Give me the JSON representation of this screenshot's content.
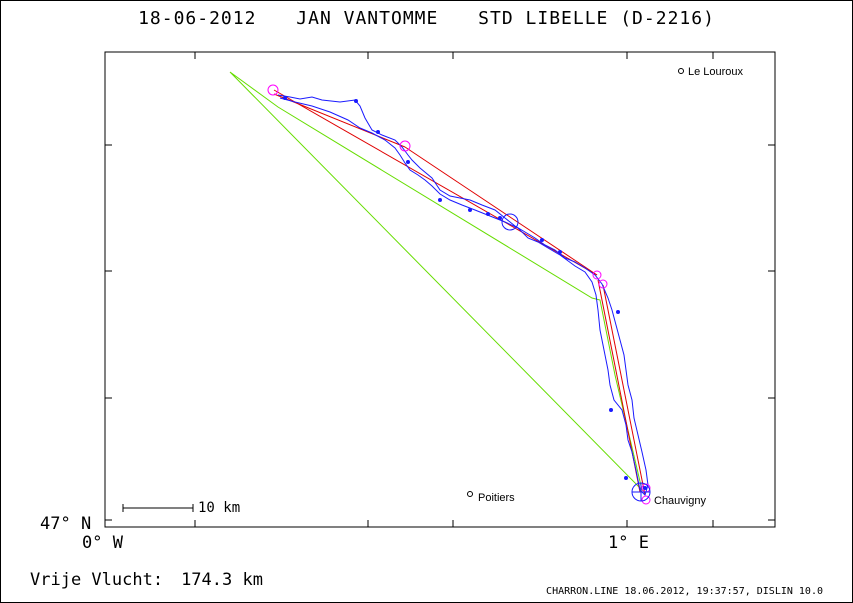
{
  "header": {
    "date": "18-06-2012",
    "pilot": "JAN VANTOMME",
    "glider": "STD LIBELLE (D-2216)"
  },
  "axes": {
    "lat_label": "47° N",
    "lon_left_label": "0° W",
    "lon_right_label": "1° E"
  },
  "places": {
    "le_louroux": "Le Louroux",
    "poitiers": "Poitiers",
    "chauvigny": "Chauvigny"
  },
  "scale": {
    "label": "10 km"
  },
  "distance": {
    "label": "Vrije Vlucht:",
    "value": "174.3 km"
  },
  "footer": {
    "text": "CHARRON.LINE 18.06.2012, 19:37:57, DISLIN 10.0"
  },
  "colors": {
    "track": "#1a1aff",
    "task": "#e00000",
    "free_flight": "#66dd00",
    "turnpoint": "#ff00ff",
    "frame": "#000000"
  }
}
